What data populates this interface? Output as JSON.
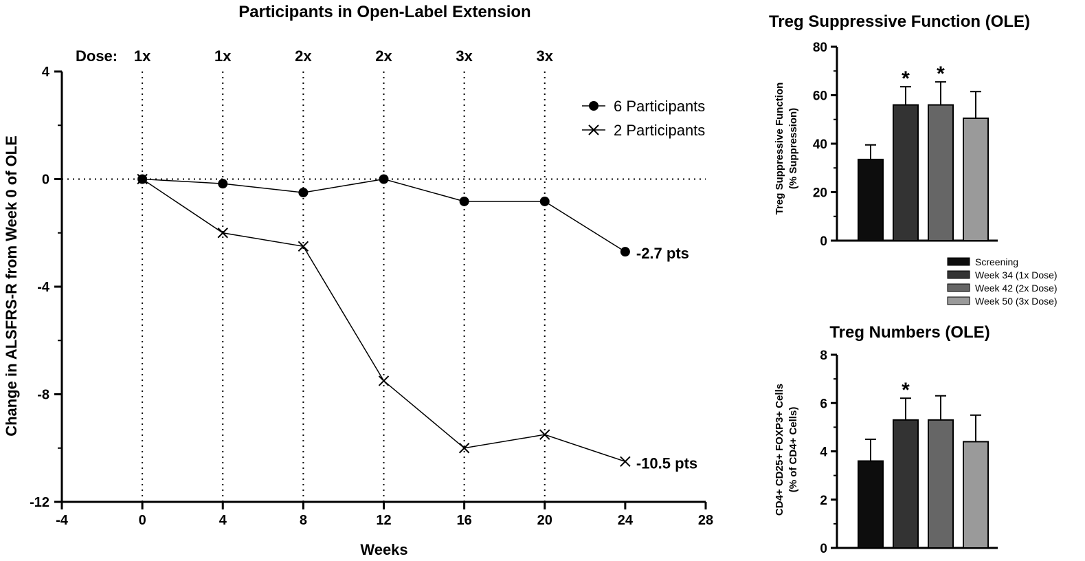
{
  "chart_data": [
    {
      "type": "line",
      "title": "Participants in Open-Label Extension",
      "xlabel": "Weeks",
      "ylabel": "Change in ALSFRS-R from Week 0 of OLE",
      "xlim": [
        -4,
        28
      ],
      "ylim": [
        -12,
        4
      ],
      "xticks": [
        "-4",
        "0",
        "4",
        "8",
        "12",
        "16",
        "20",
        "24",
        "28"
      ],
      "yticks": [
        "4",
        "0",
        "-4",
        "-8",
        "-12"
      ],
      "dose_prefix": "Dose:",
      "doses": [
        {
          "week": 0,
          "label": "1x"
        },
        {
          "week": 4,
          "label": "1x"
        },
        {
          "week": 8,
          "label": "2x"
        },
        {
          "week": 12,
          "label": "2x"
        },
        {
          "week": 16,
          "label": "3x"
        },
        {
          "week": 20,
          "label": "3x"
        }
      ],
      "legend_position": "top-right",
      "series": [
        {
          "name": "6 Participants",
          "marker": "circle",
          "x": [
            0,
            4,
            8,
            12,
            16,
            20,
            24
          ],
          "y": [
            0,
            -0.17,
            -0.5,
            0,
            -0.83,
            -0.83,
            -2.7
          ],
          "end_label": "-2.7 pts"
        },
        {
          "name": "2 Participants",
          "marker": "x",
          "x": [
            0,
            4,
            8,
            12,
            16,
            20,
            24
          ],
          "y": [
            0,
            -2,
            -2.5,
            -7.5,
            -10,
            -9.5,
            -10.5
          ],
          "end_label": "-10.5 pts"
        }
      ]
    },
    {
      "type": "bar",
      "title": "Treg Suppressive Function (OLE)",
      "ylabel_lines": [
        "Treg Suppressive Function",
        "(% Suppression)"
      ],
      "ylim": [
        0,
        80
      ],
      "yticks": [
        "0",
        "20",
        "40",
        "60",
        "80"
      ],
      "categories": [
        "Screening",
        "Week 34 (1x Dose)",
        "Week 42 (2x Dose)",
        "Week 50 (3x Dose)"
      ],
      "values": [
        33.5,
        56,
        56,
        50.5
      ],
      "errors": [
        6,
        7.5,
        9.5,
        11
      ],
      "significance": [
        "",
        "*",
        "*",
        ""
      ]
    },
    {
      "type": "bar",
      "title": "Treg Numbers (OLE)",
      "ylabel_lines": [
        "CD4+ CD25+ FOXP3+ Cells",
        "(% of CD4+ Cells)"
      ],
      "ylim": [
        0,
        8
      ],
      "yticks": [
        "0",
        "2",
        "4",
        "6",
        "8"
      ],
      "categories": [
        "Screening",
        "Week 34 (1x Dose)",
        "Week 42 (2x Dose)",
        "Week 50 (3x Dose)"
      ],
      "values": [
        3.6,
        5.3,
        5.3,
        4.4
      ],
      "errors": [
        0.9,
        0.9,
        1.0,
        1.1
      ],
      "significance": [
        "",
        "*",
        "",
        ""
      ]
    }
  ],
  "legend": {
    "entries": [
      "Screening",
      "Week 34 (1x Dose)",
      "Week 42 (2x Dose)",
      "Week 50 (3x Dose)"
    ],
    "colors": [
      "#0d0d0d",
      "#333333",
      "#666666",
      "#9a9a9a"
    ]
  }
}
